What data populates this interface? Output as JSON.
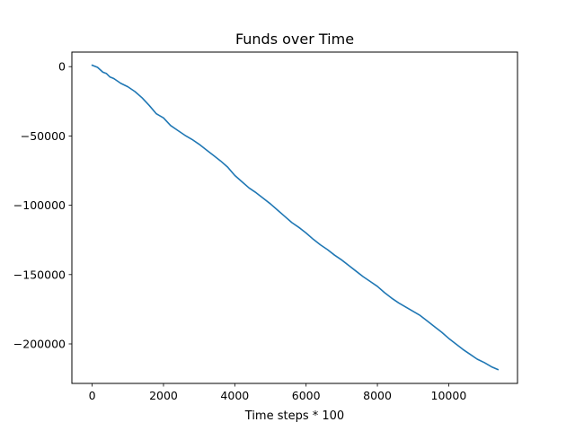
{
  "chart_data": {
    "type": "line",
    "title": "Funds over Time",
    "xlabel": "Time steps * 100",
    "ylabel": "",
    "xlim": [
      -570,
      11930
    ],
    "ylim": [
      -228500,
      10500
    ],
    "xticks": [
      0,
      2000,
      4000,
      6000,
      8000,
      10000
    ],
    "yticks": [
      0,
      -50000,
      -100000,
      -150000,
      -200000
    ],
    "xtick_labels": [
      "0",
      "2000",
      "4000",
      "6000",
      "8000",
      "10000"
    ],
    "ytick_labels": [
      "0",
      "−50000",
      "−100000",
      "−150000",
      "−200000"
    ],
    "grid": false,
    "legend": "none",
    "series": [
      {
        "color": "#1f77b4",
        "x": [
          0,
          150,
          300,
          400,
          500,
          600,
          800,
          1000,
          1200,
          1400,
          1600,
          1800,
          2000,
          2200,
          2400,
          2600,
          2800,
          3000,
          3200,
          3400,
          3600,
          3800,
          4000,
          4200,
          4400,
          4600,
          4800,
          5000,
          5200,
          5400,
          5600,
          5800,
          6000,
          6200,
          6400,
          6600,
          6800,
          7000,
          7200,
          7400,
          7600,
          7800,
          8000,
          8200,
          8400,
          8600,
          8800,
          9000,
          9200,
          9400,
          9600,
          9800,
          10000,
          10200,
          10400,
          10600,
          10800,
          11000,
          11200,
          11380
        ],
        "y": [
          1000,
          -500,
          -4000,
          -5000,
          -7500,
          -8500,
          -12000,
          -14500,
          -18000,
          -22500,
          -28000,
          -34000,
          -37000,
          -42500,
          -46000,
          -49500,
          -52500,
          -56000,
          -60000,
          -64000,
          -68000,
          -72500,
          -78500,
          -83000,
          -87500,
          -91000,
          -95000,
          -99000,
          -103500,
          -108000,
          -112500,
          -116000,
          -120000,
          -124500,
          -128500,
          -132000,
          -136000,
          -139500,
          -143500,
          -147500,
          -151500,
          -155000,
          -158500,
          -163000,
          -167000,
          -170500,
          -173500,
          -176500,
          -179500,
          -183500,
          -187500,
          -191500,
          -196000,
          -200000,
          -204000,
          -207500,
          -211000,
          -213500,
          -216500,
          -218500
        ]
      }
    ]
  }
}
